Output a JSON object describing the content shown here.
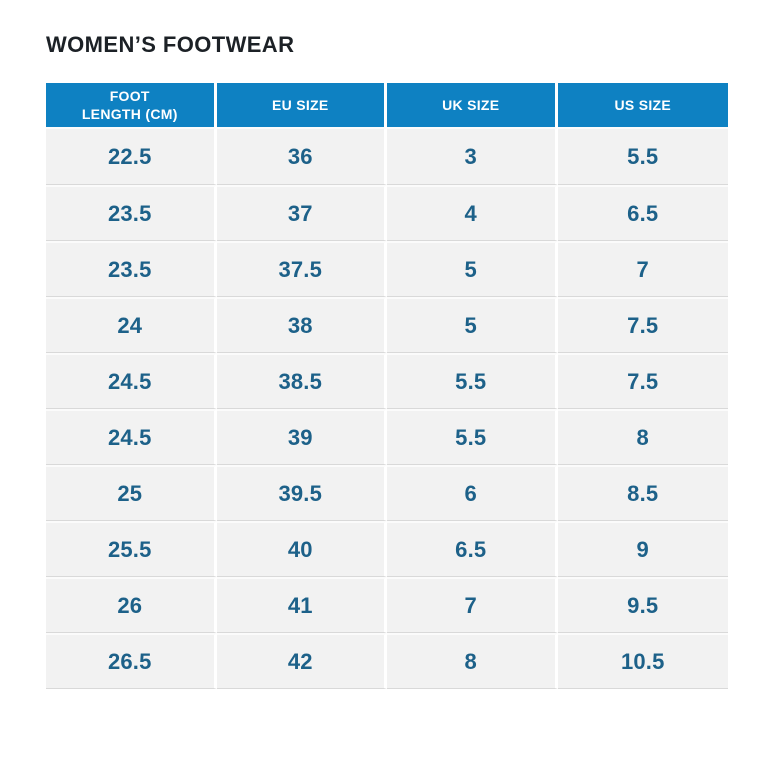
{
  "page_title": "WOMEN’S FOOTWEAR",
  "colors": {
    "header_bg": "#0e81c2",
    "header_text": "#ffffff",
    "cell_text": "#1d6189",
    "row_bg": "#f2f2f2",
    "row_divider": "#d9d9d9",
    "title_text": "#1c2126",
    "page_bg": "#ffffff"
  },
  "display": {
    "header_labels": [
      "FOOT\nLENGTH (CM)",
      "EU SIZE",
      "UK SIZE",
      "US SIZE"
    ]
  },
  "chart_data": {
    "type": "table",
    "title": "WOMEN’S FOOTWEAR",
    "columns": [
      "FOOT LENGTH (CM)",
      "EU SIZE",
      "UK SIZE",
      "US SIZE"
    ],
    "rows": [
      [
        "22.5",
        "36",
        "3",
        "5.5"
      ],
      [
        "23.5",
        "37",
        "4",
        "6.5"
      ],
      [
        "23.5",
        "37.5",
        "5",
        "7"
      ],
      [
        "24",
        "38",
        "5",
        "7.5"
      ],
      [
        "24.5",
        "38.5",
        "5.5",
        "7.5"
      ],
      [
        "24.5",
        "39",
        "5.5",
        "8"
      ],
      [
        "25",
        "39.5",
        "6",
        "8.5"
      ],
      [
        "25.5",
        "40",
        "6.5",
        "9"
      ],
      [
        "26",
        "41",
        "7",
        "9.5"
      ],
      [
        "26.5",
        "42",
        "8",
        "10.5"
      ]
    ],
    "layout": {
      "header_position": "top",
      "grid": "row-and-column-separators",
      "column_count": 4,
      "row_count": 10
    }
  }
}
